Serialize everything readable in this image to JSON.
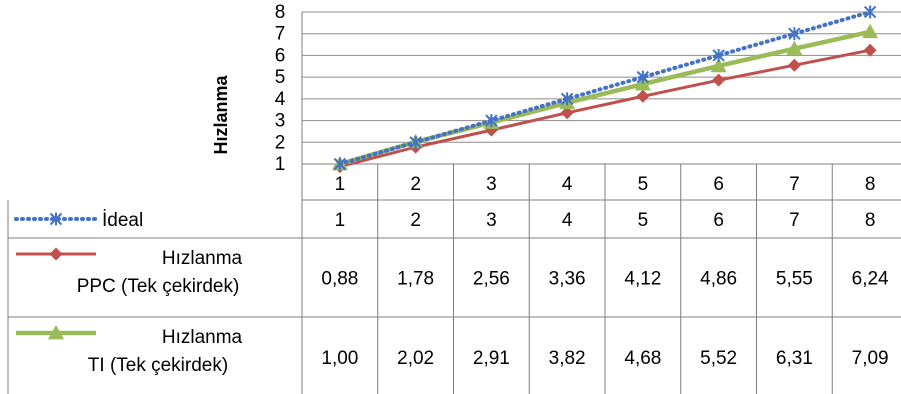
{
  "chart_data": {
    "type": "line",
    "ylabel": "Hızlanma",
    "xlabel": "",
    "ylim": [
      1,
      8
    ],
    "y_ticks": [
      "1",
      "2",
      "3",
      "4",
      "5",
      "6",
      "7",
      "8"
    ],
    "categories": [
      "1",
      "2",
      "3",
      "4",
      "5",
      "6",
      "7",
      "8"
    ],
    "grid": "horizontal",
    "legend": "data-table",
    "series": [
      {
        "name": "İdeal",
        "legend_lines": [
          "İdeal"
        ],
        "color": "#4472C4",
        "style": "dotted",
        "marker": "star",
        "values": [
          1,
          2,
          3,
          4,
          5,
          6,
          7,
          8
        ],
        "labels": [
          "1",
          "2",
          "3",
          "4",
          "5",
          "6",
          "7",
          "8"
        ]
      },
      {
        "name": "Hızlanma PPC (Tek çekirdek)",
        "legend_lines": [
          "Hızlanma",
          "PPC (Tek çekirdek)"
        ],
        "color": "#C0504D",
        "style": "solid",
        "marker": "diamond",
        "values": [
          0.88,
          1.78,
          2.56,
          3.36,
          4.12,
          4.86,
          5.55,
          6.24
        ],
        "labels": [
          "0,88",
          "1,78",
          "2,56",
          "3,36",
          "4,12",
          "4,86",
          "5,55",
          "6,24"
        ]
      },
      {
        "name": "Hızlanma TI (Tek çekirdek)",
        "legend_lines": [
          "Hızlanma",
          "TI (Tek çekirdek)"
        ],
        "color": "#9BBB59",
        "style": "solid",
        "marker": "triangle",
        "values": [
          1.0,
          2.02,
          2.91,
          3.82,
          4.68,
          5.52,
          6.31,
          7.09
        ],
        "labels": [
          "1,00",
          "2,02",
          "2,91",
          "3,82",
          "4,68",
          "5,52",
          "6,31",
          "7,09"
        ]
      }
    ]
  }
}
